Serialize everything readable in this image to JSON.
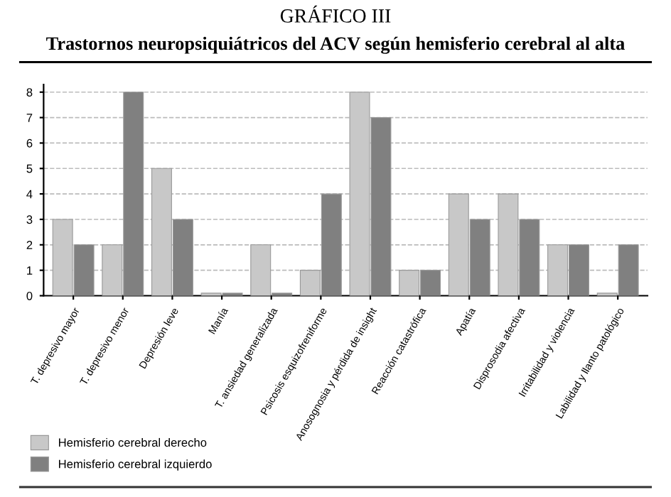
{
  "chart_data": {
    "type": "bar",
    "title": "GRÁFICO III",
    "subtitle": "Trastornos neuropsiquiátricos del ACV según hemisferio cerebral al alta",
    "categories": [
      "T. depresivo mayor",
      "T. depresivo menor",
      "Depresión leve",
      "Manía",
      "T. ansiedad generalizada",
      "Psicosis esquizofreniforme",
      "Anosognosia y pérdida de insight",
      "Reacción catastrófica",
      "Apatía",
      "Disprosodia afectiva",
      "Irritabilidad y violencia",
      "Labilidad y llanto patológico"
    ],
    "series": [
      {
        "name": "Hemisferio cerebral derecho",
        "color": "#c8c8c8",
        "values": [
          3,
          2,
          5,
          0.1,
          2,
          1,
          8,
          1,
          4,
          4,
          2,
          0.1
        ]
      },
      {
        "name": "Hemisferio cerebral izquierdo",
        "color": "#808080",
        "values": [
          2,
          8,
          3,
          0.1,
          0.1,
          4,
          7,
          1,
          3,
          3,
          2,
          2
        ]
      }
    ],
    "ylim": [
      0,
      8.3
    ],
    "yticks": [
      0,
      1,
      2,
      3,
      4,
      5,
      6,
      7,
      8
    ],
    "grid": "y",
    "legend": "bottom left"
  }
}
